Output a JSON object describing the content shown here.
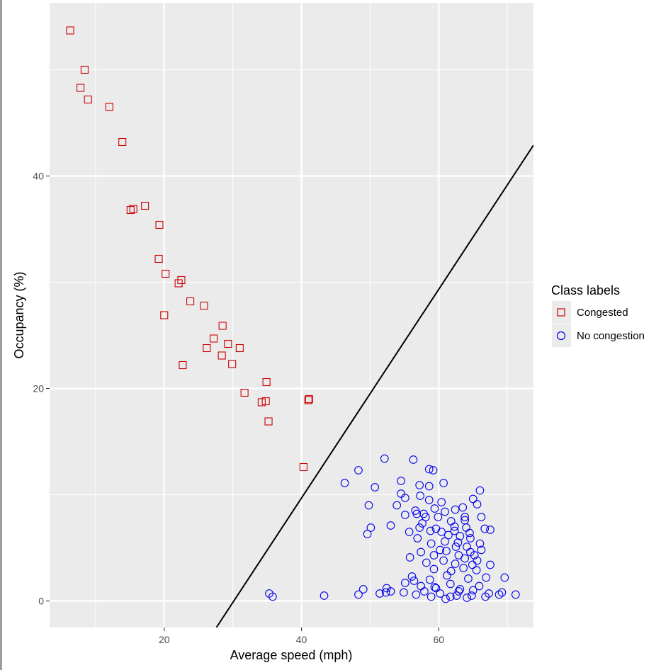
{
  "chart_data": {
    "type": "scatter",
    "xlabel": "Average speed (mph)",
    "ylabel": "Occupancy (%)",
    "xlim": [
      3.3,
      73.8
    ],
    "ylim": [
      -2.5,
      56.3
    ],
    "x_ticks": [
      20,
      40,
      60
    ],
    "y_ticks": [
      0,
      20,
      40
    ],
    "x_tick_labels": [
      "20",
      "40",
      "60"
    ],
    "y_tick_labels": [
      "0",
      "20",
      "40"
    ],
    "grid": true,
    "legend": {
      "title": "Class labels",
      "position": "right",
      "entries": [
        "Congested",
        "No congestion"
      ]
    },
    "colors": {
      "Congested": "#cc0000",
      "No congestion": "#0000ee",
      "boundary": "#000000",
      "panel": "#ebebeb",
      "grid": "#ffffff"
    },
    "decision_boundary": {
      "x": [
        27.6,
        73.8
      ],
      "y": [
        -2.5,
        42.9
      ]
    },
    "series": [
      {
        "name": "Congested",
        "marker": "square",
        "points": [
          [
            6.3,
            53.7
          ],
          [
            8.4,
            50.0
          ],
          [
            7.8,
            48.3
          ],
          [
            8.9,
            47.2
          ],
          [
            12.0,
            46.5
          ],
          [
            13.9,
            43.2
          ],
          [
            15.1,
            36.8
          ],
          [
            15.5,
            36.9
          ],
          [
            17.2,
            37.2
          ],
          [
            19.3,
            35.4
          ],
          [
            19.2,
            32.2
          ],
          [
            20.2,
            30.8
          ],
          [
            22.1,
            29.9
          ],
          [
            22.5,
            30.2
          ],
          [
            23.8,
            28.2
          ],
          [
            25.8,
            27.8
          ],
          [
            20.0,
            26.9
          ],
          [
            28.5,
            25.9
          ],
          [
            27.2,
            24.7
          ],
          [
            26.2,
            23.8
          ],
          [
            29.3,
            24.2
          ],
          [
            31.0,
            23.8
          ],
          [
            28.4,
            23.1
          ],
          [
            29.9,
            22.3
          ],
          [
            22.7,
            22.2
          ],
          [
            31.7,
            19.6
          ],
          [
            34.9,
            20.6
          ],
          [
            34.2,
            18.7
          ],
          [
            34.8,
            18.8
          ],
          [
            41.1,
            19.0
          ],
          [
            41.0,
            18.9
          ],
          [
            35.2,
            16.9
          ],
          [
            40.3,
            12.6
          ]
        ]
      },
      {
        "name": "No congestion",
        "marker": "circle",
        "points": [
          [
            52.1,
            13.4
          ],
          [
            56.3,
            13.3
          ],
          [
            48.3,
            12.3
          ],
          [
            58.6,
            12.4
          ],
          [
            59.2,
            12.3
          ],
          [
            46.3,
            11.1
          ],
          [
            54.5,
            11.3
          ],
          [
            60.7,
            11.1
          ],
          [
            50.7,
            10.7
          ],
          [
            57.2,
            10.9
          ],
          [
            58.6,
            10.8
          ],
          [
            66.0,
            10.4
          ],
          [
            54.5,
            10.1
          ],
          [
            55.1,
            9.7
          ],
          [
            57.3,
            9.9
          ],
          [
            58.6,
            9.5
          ],
          [
            60.4,
            9.3
          ],
          [
            65.0,
            9.6
          ],
          [
            49.8,
            9.0
          ],
          [
            53.9,
            9.0
          ],
          [
            56.6,
            8.5
          ],
          [
            59.4,
            8.7
          ],
          [
            60.9,
            8.4
          ],
          [
            62.4,
            8.6
          ],
          [
            63.5,
            8.8
          ],
          [
            65.6,
            9.1
          ],
          [
            55.1,
            8.1
          ],
          [
            57.8,
            8.2
          ],
          [
            59.9,
            7.9
          ],
          [
            61.8,
            7.5
          ],
          [
            63.8,
            7.9
          ],
          [
            66.2,
            7.9
          ],
          [
            50.1,
            6.9
          ],
          [
            53.0,
            7.1
          ],
          [
            55.7,
            6.5
          ],
          [
            57.2,
            6.9
          ],
          [
            58.8,
            6.6
          ],
          [
            60.4,
            6.5
          ],
          [
            62.3,
            6.6
          ],
          [
            64.0,
            6.9
          ],
          [
            66.7,
            6.8
          ],
          [
            67.5,
            6.7
          ],
          [
            49.6,
            6.3
          ],
          [
            56.9,
            5.9
          ],
          [
            58.9,
            5.4
          ],
          [
            60.9,
            5.6
          ],
          [
            62.8,
            5.5
          ],
          [
            64.6,
            5.9
          ],
          [
            66.0,
            5.4
          ],
          [
            57.4,
            4.6
          ],
          [
            59.3,
            4.3
          ],
          [
            61.1,
            4.7
          ],
          [
            62.9,
            4.3
          ],
          [
            64.6,
            4.6
          ],
          [
            66.2,
            4.8
          ],
          [
            55.8,
            4.1
          ],
          [
            58.2,
            3.6
          ],
          [
            60.7,
            3.8
          ],
          [
            62.4,
            3.5
          ],
          [
            63.8,
            4.0
          ],
          [
            65.6,
            3.8
          ],
          [
            59.3,
            3.0
          ],
          [
            61.8,
            2.8
          ],
          [
            63.6,
            3.1
          ],
          [
            65.5,
            2.9
          ],
          [
            67.5,
            3.4
          ],
          [
            56.1,
            2.3
          ],
          [
            58.7,
            2.0
          ],
          [
            61.2,
            2.4
          ],
          [
            64.3,
            2.1
          ],
          [
            66.9,
            2.2
          ],
          [
            69.6,
            2.2
          ],
          [
            55.1,
            1.7
          ],
          [
            57.4,
            1.4
          ],
          [
            59.6,
            1.2
          ],
          [
            61.7,
            1.6
          ],
          [
            63.1,
            1.1
          ],
          [
            65.9,
            1.4
          ],
          [
            57.9,
            0.9
          ],
          [
            60.2,
            0.7
          ],
          [
            62.9,
            0.9
          ],
          [
            65.0,
            1.0
          ],
          [
            67.3,
            0.7
          ],
          [
            69.2,
            0.8
          ],
          [
            35.3,
            0.7
          ],
          [
            35.8,
            0.4
          ],
          [
            43.3,
            0.5
          ],
          [
            48.3,
            0.6
          ],
          [
            49.0,
            1.1
          ],
          [
            51.4,
            0.7
          ],
          [
            52.4,
            1.2
          ],
          [
            53.0,
            0.9
          ],
          [
            54.9,
            0.8
          ],
          [
            56.7,
            0.6
          ],
          [
            58.9,
            0.4
          ],
          [
            61.0,
            0.2
          ],
          [
            62.6,
            0.5
          ],
          [
            64.8,
            0.5
          ],
          [
            66.8,
            0.4
          ],
          [
            68.8,
            0.6
          ],
          [
            71.2,
            0.6
          ],
          [
            52.3,
            0.8
          ],
          [
            56.4,
            1.9
          ],
          [
            59.4,
            1.3
          ],
          [
            61.7,
            0.4
          ],
          [
            64.1,
            0.3
          ],
          [
            60.2,
            4.8
          ],
          [
            62.3,
            7.0
          ],
          [
            63.1,
            6.1
          ],
          [
            64.9,
            3.4
          ],
          [
            65.2,
            4.3
          ],
          [
            64.1,
            5.1
          ],
          [
            58.1,
            7.9
          ],
          [
            57.6,
            7.3
          ],
          [
            56.8,
            8.2
          ],
          [
            59.6,
            6.8
          ],
          [
            61.4,
            6.2
          ],
          [
            62.5,
            5.1
          ],
          [
            63.8,
            7.6
          ],
          [
            64.5,
            6.4
          ]
        ]
      }
    ]
  }
}
